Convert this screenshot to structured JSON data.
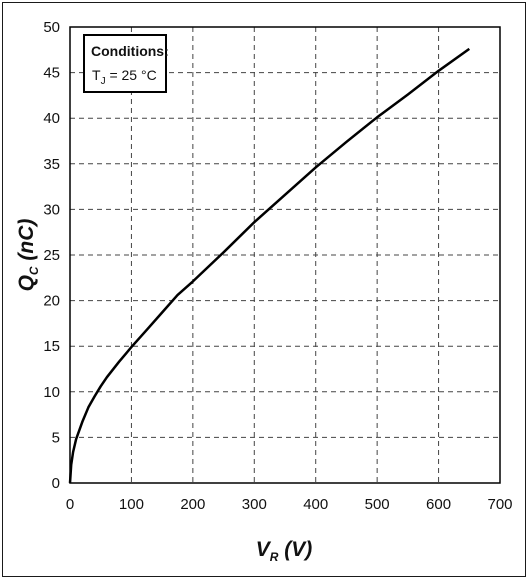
{
  "chart_data": {
    "type": "line",
    "xlabel_main": "V",
    "xlabel_sub": "R",
    "xlabel_unit": " (V)",
    "ylabel_main": "Q",
    "ylabel_sub": "C",
    "ylabel_unit": " (nC)",
    "xlim": [
      0,
      700
    ],
    "ylim": [
      0,
      50
    ],
    "x_ticks": [
      0,
      100,
      200,
      300,
      400,
      500,
      600,
      700
    ],
    "y_ticks": [
      0,
      5,
      10,
      15,
      20,
      25,
      30,
      35,
      40,
      45,
      50
    ],
    "grid": true,
    "series": [
      {
        "color": "#000000",
        "x": [
          0,
          2,
          5,
          10,
          20,
          30,
          40,
          50,
          60,
          80,
          100,
          125,
          150,
          175,
          200,
          250,
          300,
          350,
          400,
          450,
          500,
          550,
          600,
          650
        ],
        "y": [
          0,
          2.0,
          3.4,
          4.8,
          6.7,
          8.3,
          9.5,
          10.6,
          11.6,
          13.3,
          14.9,
          16.8,
          18.7,
          20.6,
          22.1,
          25.3,
          28.6,
          31.6,
          34.6,
          37.4,
          40.1,
          42.6,
          45.2,
          47.6
        ]
      }
    ],
    "annotation": {
      "line1": "Conditions:",
      "line2_prefix": "T",
      "line2_sub": "J",
      "line2_suffix": " = 25 °C"
    }
  }
}
